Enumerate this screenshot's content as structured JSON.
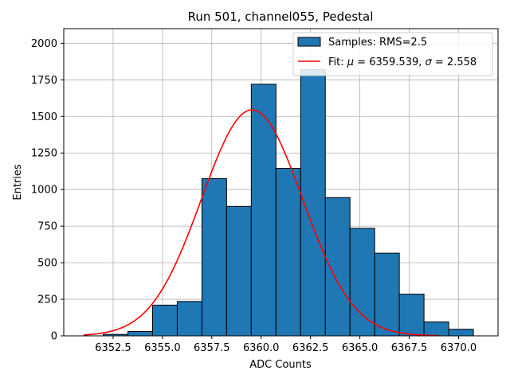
{
  "chart_data": {
    "type": "bar",
    "title": "Run 501, channel055, Pedestal",
    "xlabel": "ADC Counts",
    "ylabel": "Entries",
    "xlim": [
      6350.0,
      6372.0
    ],
    "ylim": [
      0,
      2100
    ],
    "xticks": [
      6352.5,
      6355.0,
      6357.5,
      6360.0,
      6362.5,
      6365.0,
      6367.5,
      6370.0
    ],
    "xtick_labels": [
      "6352.5",
      "6355.0",
      "6357.5",
      "6360.0",
      "6362.5",
      "6365.0",
      "6367.5",
      "6370.0"
    ],
    "yticks": [
      0,
      250,
      500,
      750,
      1000,
      1250,
      1500,
      1750,
      2000
    ],
    "ytick_labels": [
      "0",
      "250",
      "500",
      "750",
      "1000",
      "1250",
      "1500",
      "1750",
      "2000"
    ],
    "grid": true,
    "legend_position": "top-right",
    "histogram": {
      "name": "Samples: RMS=2.5",
      "color": "#1f77b4",
      "bins": [
        {
          "start": 6352.0,
          "end": 6353.25,
          "value": 10
        },
        {
          "start": 6353.25,
          "end": 6354.5,
          "value": 30
        },
        {
          "start": 6354.5,
          "end": 6355.75,
          "value": 210
        },
        {
          "start": 6355.75,
          "end": 6357.0,
          "value": 235
        },
        {
          "start": 6357.0,
          "end": 6358.25,
          "value": 1075
        },
        {
          "start": 6358.25,
          "end": 6359.5,
          "value": 885
        },
        {
          "start": 6359.5,
          "end": 6360.75,
          "value": 1720
        },
        {
          "start": 6360.75,
          "end": 6362.0,
          "value": 1145
        },
        {
          "start": 6362.0,
          "end": 6363.25,
          "value": 1820
        },
        {
          "start": 6363.25,
          "end": 6364.5,
          "value": 945
        },
        {
          "start": 6364.5,
          "end": 6365.75,
          "value": 735
        },
        {
          "start": 6365.75,
          "end": 6367.0,
          "value": 565
        },
        {
          "start": 6367.0,
          "end": 6368.25,
          "value": 285
        },
        {
          "start": 6368.25,
          "end": 6369.5,
          "value": 95
        },
        {
          "start": 6369.5,
          "end": 6370.75,
          "value": 45
        }
      ]
    },
    "fit": {
      "name": "Fit: μ = 6359.539, σ = 2.558",
      "label_prefix": "Fit: ",
      "mu_symbol": "μ",
      "mu_text": " = 6359.539, ",
      "sigma_symbol": "σ",
      "sigma_text": " = 2.558",
      "color": "#ff0000",
      "x_range": [
        6351.0,
        6369.0
      ],
      "mu": 6359.539,
      "sigma": 2.558,
      "amplitude": 1545
    }
  }
}
